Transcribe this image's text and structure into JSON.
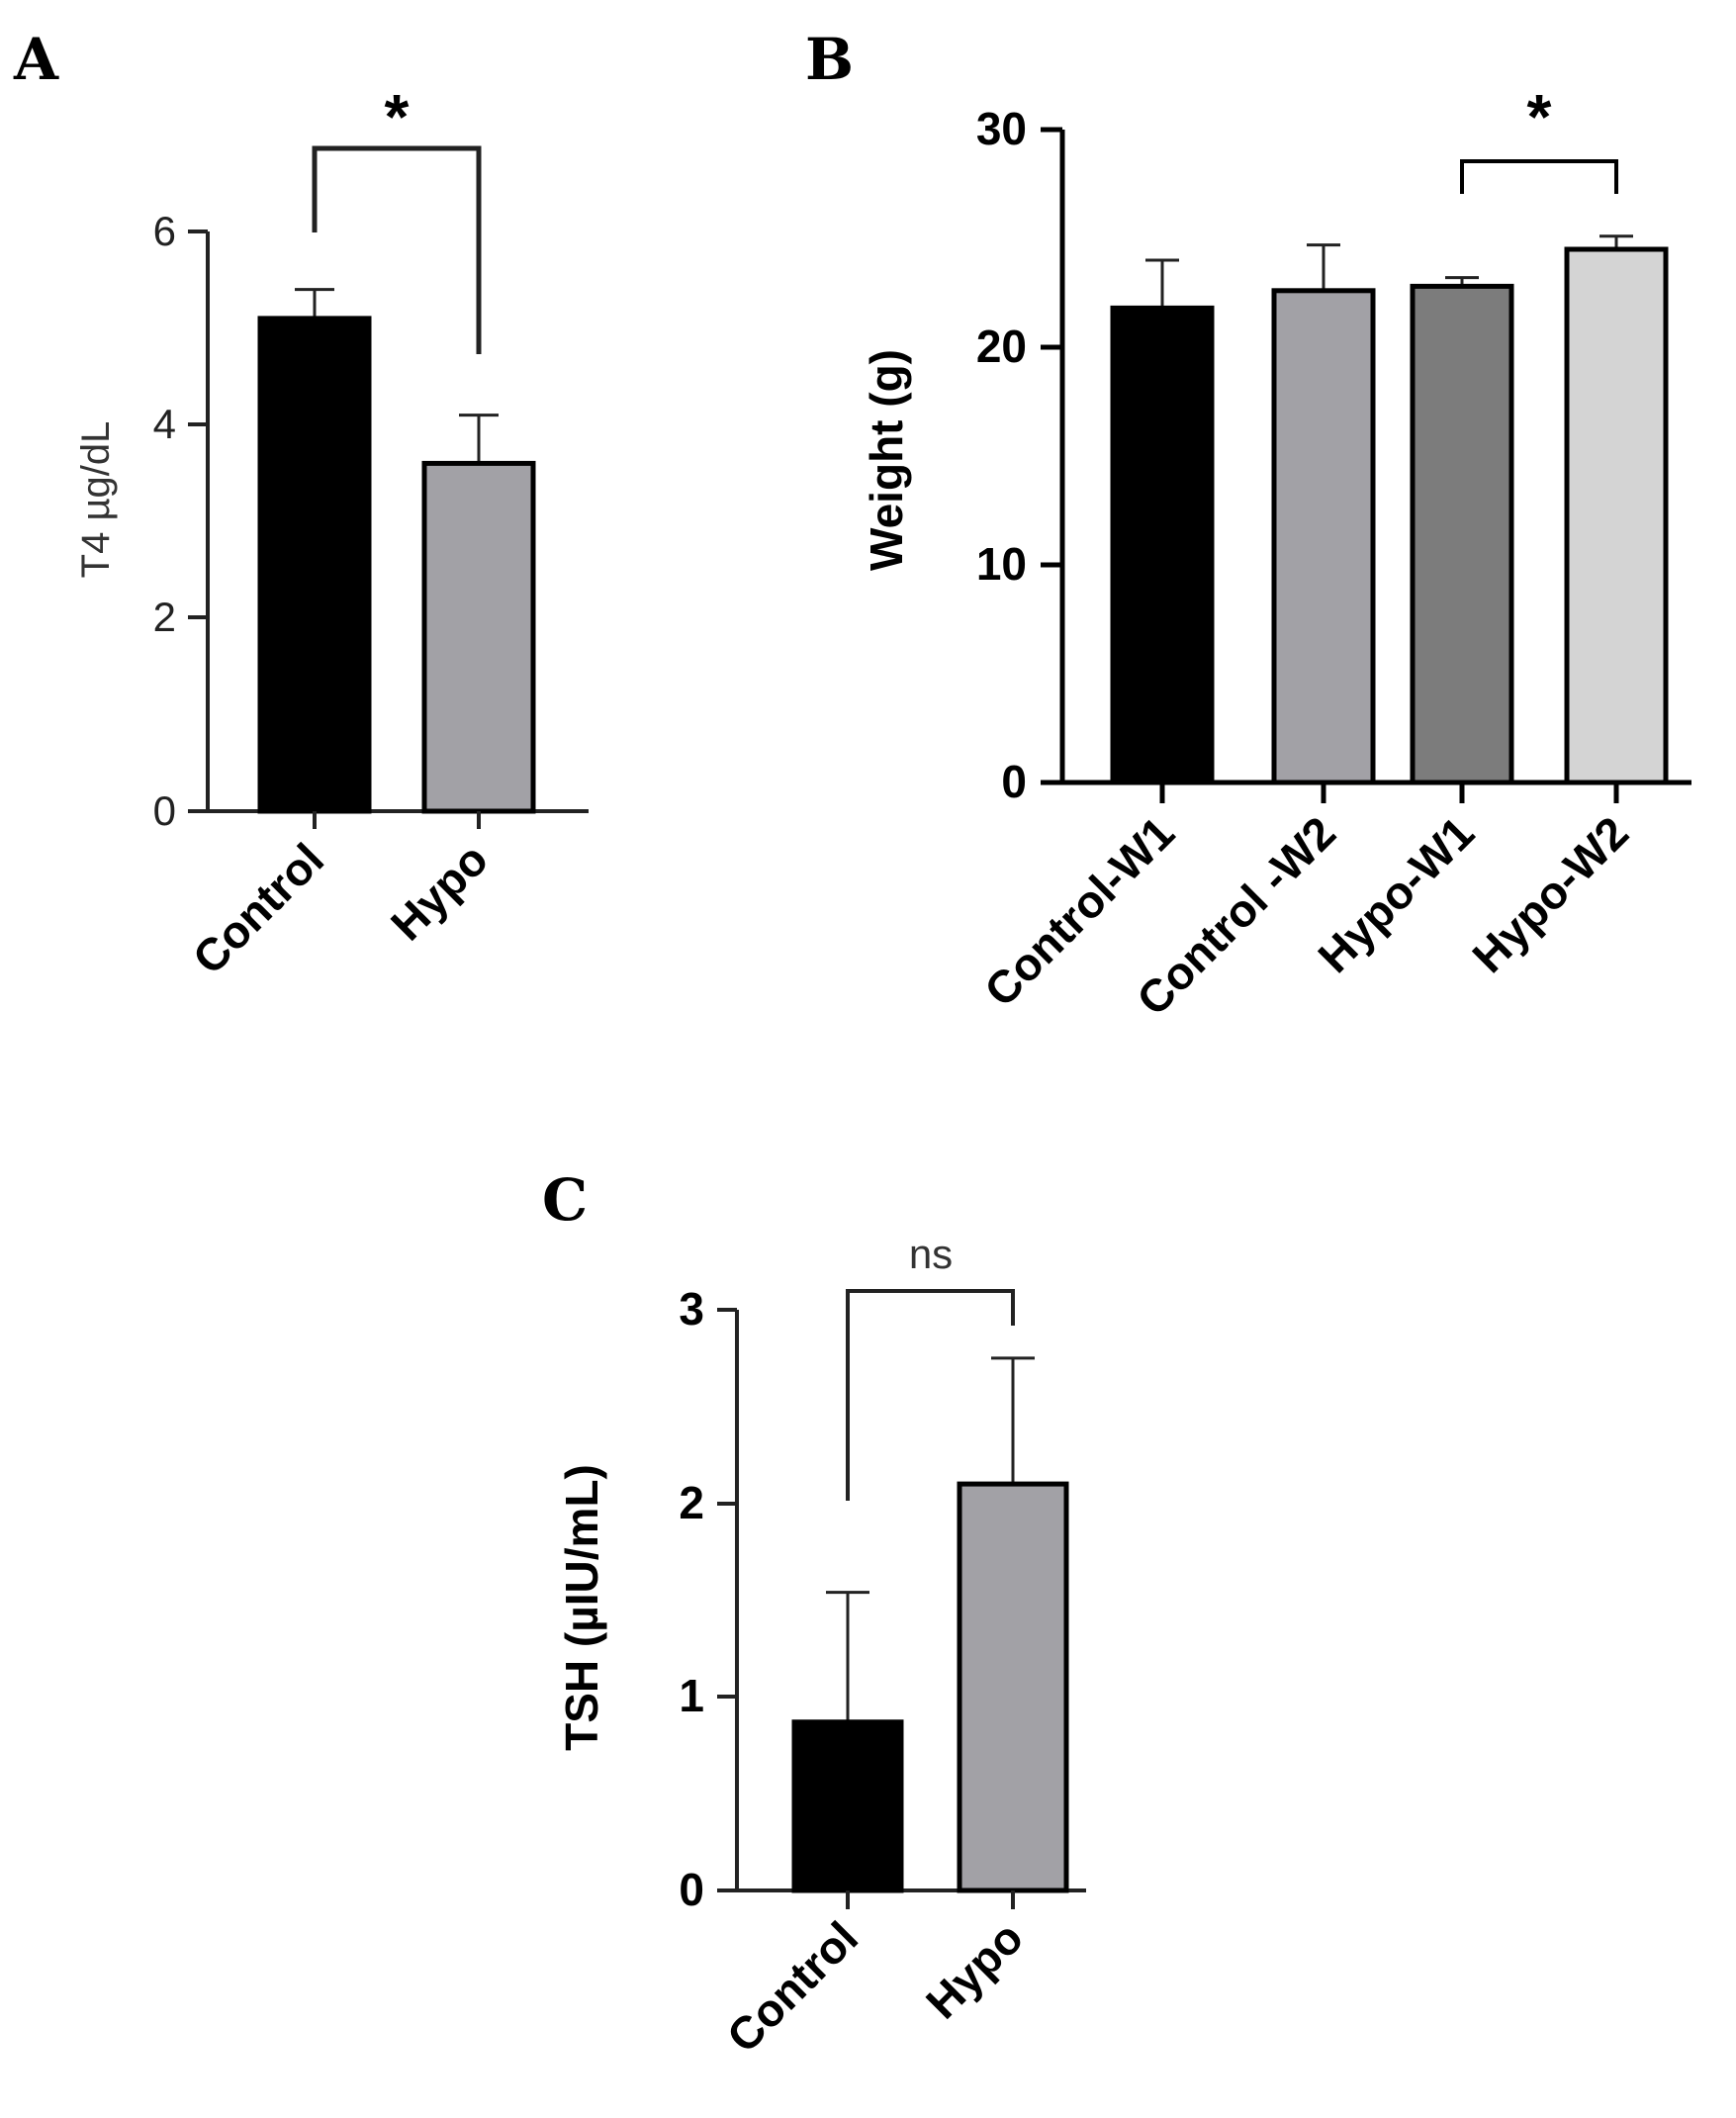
{
  "chart_data": [
    {
      "panel": "A",
      "type": "bar",
      "categories": [
        "Control",
        "Hypo"
      ],
      "values": [
        5.1,
        3.6
      ],
      "errors": [
        0.3,
        0.5
      ],
      "colors": [
        "#000000",
        "#a2a1a6"
      ],
      "ylabel": "T4 µg/dL",
      "ylim": [
        0,
        6
      ],
      "yticks": [
        "0",
        "2",
        "4",
        "6"
      ],
      "significance": {
        "label": "*",
        "between": [
          0,
          1
        ]
      }
    },
    {
      "panel": "B",
      "type": "bar",
      "categories": [
        "Control-W1",
        "Control -W2",
        "Hypo-W1",
        "Hypo-W2"
      ],
      "values": [
        21.8,
        22.6,
        22.8,
        24.5
      ],
      "errors": [
        2.2,
        2.1,
        0.4,
        0.6
      ],
      "colors": [
        "#000000",
        "#a2a1a6",
        "#7c7c7c",
        "#d4d4d4"
      ],
      "ylabel": "Weight (g)",
      "ylim": [
        0,
        30
      ],
      "yticks": [
        "0",
        "10",
        "20",
        "30"
      ],
      "significance": {
        "label": "*",
        "between": [
          2,
          3
        ]
      }
    },
    {
      "panel": "C",
      "type": "bar",
      "categories": [
        "Control",
        "Hypo"
      ],
      "values": [
        0.87,
        2.1
      ],
      "errors": [
        0.67,
        0.65
      ],
      "colors": [
        "#000000",
        "#a2a1a6"
      ],
      "ylabel": "TSH (µIU/mL)",
      "ylim": [
        0,
        3
      ],
      "yticks": [
        "0",
        "1",
        "2",
        "3"
      ],
      "significance": {
        "label": "ns",
        "between": [
          0,
          1
        ]
      }
    }
  ]
}
